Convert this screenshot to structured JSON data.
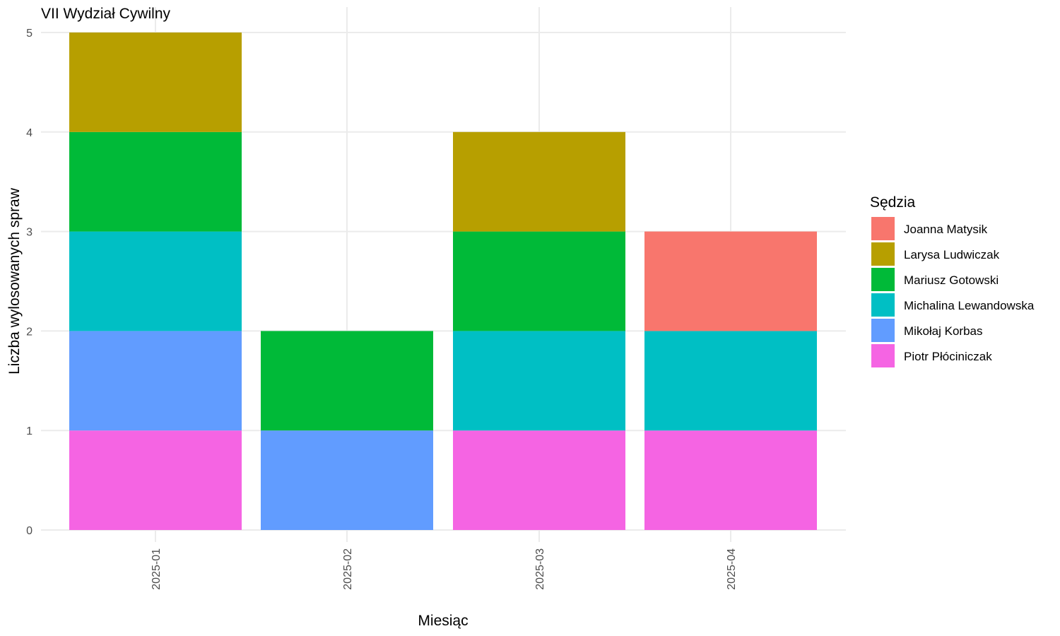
{
  "chart_data": {
    "type": "bar",
    "stacked": true,
    "title": "VII Wydział Cywilny",
    "xlabel": "Miesiąc",
    "ylabel": "Liczba wylosowanych spraw",
    "ylim": [
      0,
      5
    ],
    "yticks": [
      0,
      1,
      2,
      3,
      4,
      5
    ],
    "grid": true,
    "legend_title": "Sędzia",
    "legend_position": "right",
    "categories": [
      "2025-01",
      "2025-02",
      "2025-03",
      "2025-04"
    ],
    "series": [
      {
        "name": "Joanna Matysik",
        "color": "#F8766D",
        "values": [
          0,
          0,
          0,
          1
        ]
      },
      {
        "name": "Larysa Ludwiczak",
        "color": "#B79F00",
        "values": [
          1,
          0,
          1,
          0
        ]
      },
      {
        "name": "Mariusz Gotowski",
        "color": "#00BA38",
        "values": [
          1,
          1,
          1,
          0
        ]
      },
      {
        "name": "Michalina Lewandowska",
        "color": "#00BFC4",
        "values": [
          1,
          0,
          1,
          1
        ]
      },
      {
        "name": "Mikołaj Korbas",
        "color": "#619CFF",
        "values": [
          1,
          1,
          0,
          0
        ]
      },
      {
        "name": "Piotr Płóciniczak",
        "color": "#F564E3",
        "values": [
          1,
          0,
          1,
          1
        ]
      }
    ]
  }
}
